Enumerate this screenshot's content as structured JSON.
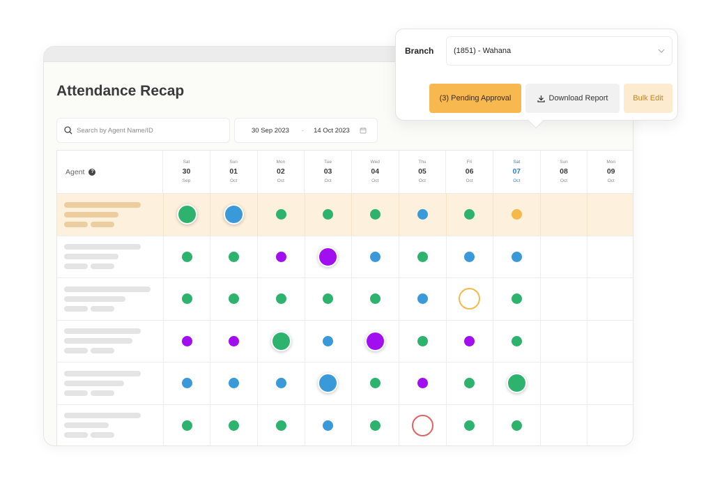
{
  "page": {
    "title": "Attendance Recap"
  },
  "search": {
    "placeholder": "Search by Agent Name/ID"
  },
  "date_range": {
    "start": "30 Sep 2023",
    "separator": "-",
    "end": "14 Oct 2023"
  },
  "table": {
    "agent_header": "Agent",
    "help_glyph": "?",
    "days": [
      {
        "weekday": "Sat",
        "day": "30",
        "month": "Sep"
      },
      {
        "weekday": "Sun",
        "day": "01",
        "month": "Oct"
      },
      {
        "weekday": "Mon",
        "day": "02",
        "month": "Oct"
      },
      {
        "weekday": "Tue",
        "day": "03",
        "month": "Oct"
      },
      {
        "weekday": "Wed",
        "day": "04",
        "month": "Oct"
      },
      {
        "weekday": "Thu",
        "day": "05",
        "month": "Oct"
      },
      {
        "weekday": "Fri",
        "day": "06",
        "month": "Oct"
      },
      {
        "weekday": "Sat",
        "day": "07",
        "month": "Oct"
      },
      {
        "weekday": "Sun",
        "day": "08",
        "month": "Oct"
      },
      {
        "weekday": "Mon",
        "day": "09",
        "month": "Oct"
      }
    ],
    "today_index": 7,
    "status_colors": {
      "green": "#2eb36f",
      "blue": "#3a9ad9",
      "purple": "#a10ef0",
      "orange": "#f5b94a",
      "red": "#e06363"
    },
    "rows": [
      {
        "highlight": true,
        "cells": [
          "green-big",
          "blue-big",
          "green",
          "green",
          "green",
          "blue",
          "green",
          "orange",
          "",
          ""
        ]
      },
      {
        "highlight": false,
        "cells": [
          "green",
          "green",
          "purple",
          "purple-big",
          "blue",
          "green",
          "blue",
          "blue",
          "",
          ""
        ]
      },
      {
        "highlight": false,
        "cells": [
          "green",
          "green",
          "green",
          "green",
          "green",
          "blue",
          "orange-ring",
          "green",
          "",
          ""
        ]
      },
      {
        "highlight": false,
        "cells": [
          "purple",
          "purple",
          "green-big",
          "blue",
          "purple-big",
          "green",
          "purple",
          "green",
          "",
          ""
        ]
      },
      {
        "highlight": false,
        "cells": [
          "blue",
          "blue",
          "blue",
          "blue-big",
          "green",
          "purple",
          "green",
          "green-big",
          "",
          ""
        ]
      },
      {
        "highlight": false,
        "cells": [
          "green",
          "green",
          "green",
          "blue",
          "green",
          "red-ring",
          "green",
          "green",
          "",
          ""
        ]
      }
    ]
  },
  "filter_popover": {
    "branch_label": "Branch",
    "branch_value": "(1851) - Wahana",
    "pending_button": "(3) Pending Approval",
    "download_button": "Download Report",
    "bulk_edit_button": "Bulk Edit"
  },
  "icons": [
    "search-icon",
    "calendar-icon",
    "help-icon",
    "chevron-down-icon",
    "download-icon"
  ]
}
